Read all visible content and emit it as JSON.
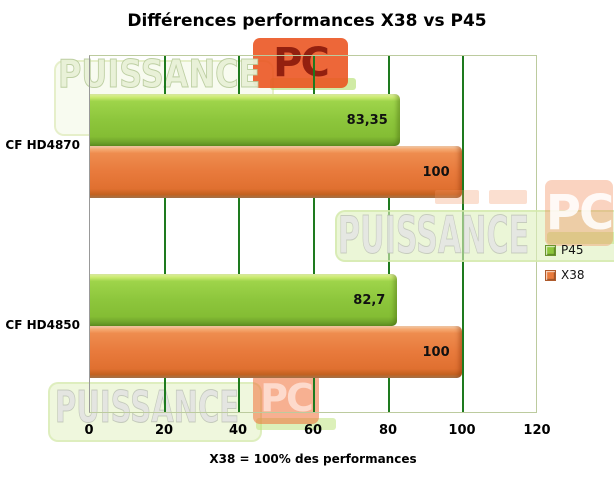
{
  "title": "Différences performances X38 vs P45",
  "chart_data": {
    "type": "bar",
    "orientation": "horizontal",
    "title": "Différences performances X38 vs P45",
    "categories": [
      "CF HD4870",
      "CF HD4850"
    ],
    "series": [
      {
        "name": "P45",
        "color": "#8dc63c",
        "values": [
          83.35,
          82.7
        ],
        "value_labels": [
          "83,35",
          "82,7"
        ]
      },
      {
        "name": "X38",
        "color": "#e87a3c",
        "values": [
          100,
          100
        ],
        "value_labels": [
          "100",
          "100"
        ]
      }
    ],
    "xlabel": "X38 = 100% des performances",
    "ylabel": "",
    "xlim": [
      0,
      120
    ],
    "xticks": [
      "0",
      "20",
      "40",
      "60",
      "80",
      "100",
      "120"
    ],
    "grid": true,
    "gridline_color": "#1e7a1e",
    "legend_position": "middle-right",
    "note": "P45 bar drawn above X38 bar in each category group; values are percentages relative to X38 = 100%"
  },
  "legend": {
    "items": [
      {
        "label": "P45",
        "color": "#8dc63c"
      },
      {
        "label": "X38",
        "color": "#e87a3c"
      }
    ]
  },
  "watermark": {
    "text": "PUISSANCE",
    "suffix": "PC",
    "accent_green": "#b0de69",
    "accent_orange": "#ea521e"
  }
}
